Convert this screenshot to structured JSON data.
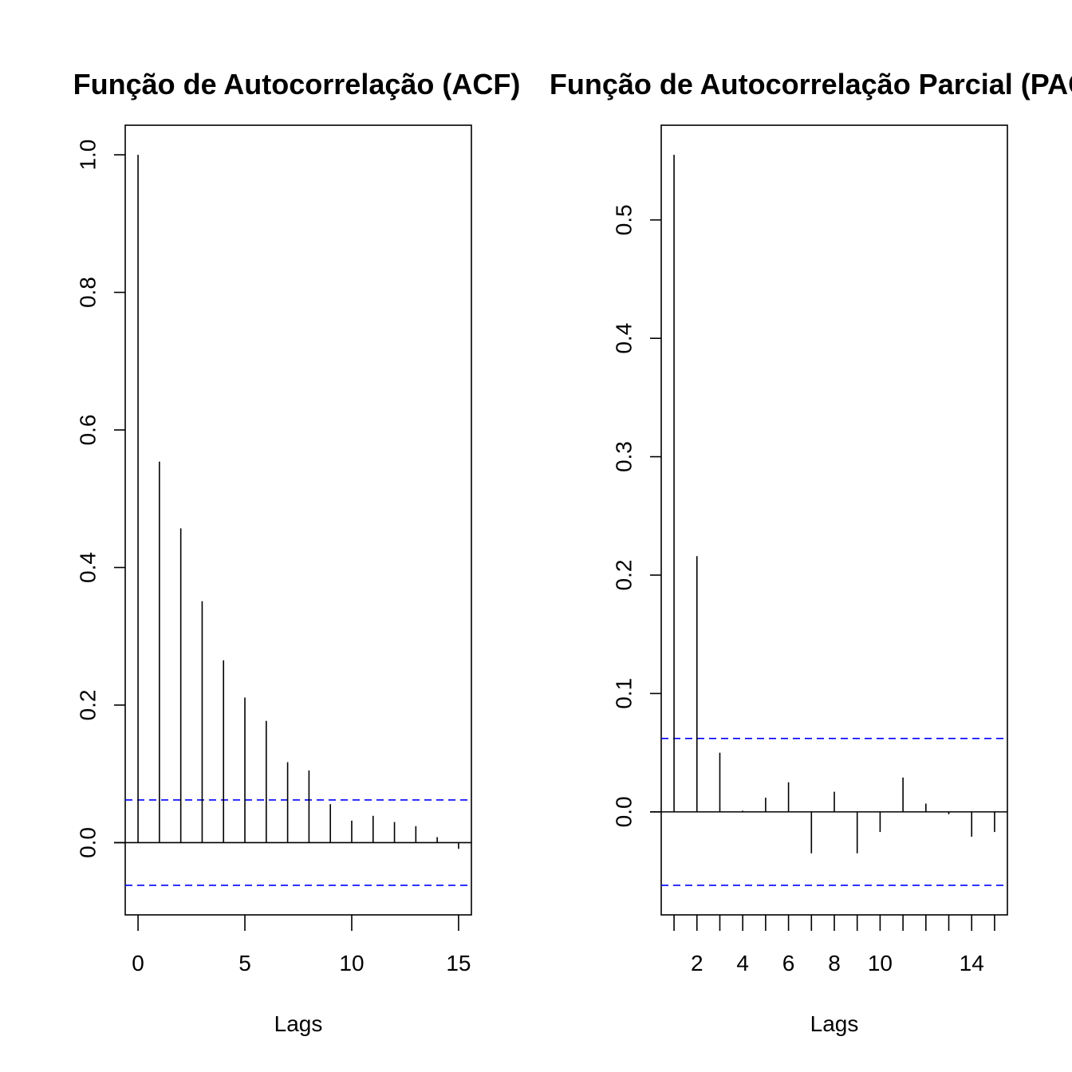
{
  "chart_data": [
    {
      "type": "bar",
      "title": "Função de Autocorrelação (ACF)",
      "xlabel": "Lags",
      "ylabel": "",
      "xlim": [
        -0.6,
        15.6
      ],
      "ylim": [
        -0.105,
        1.043
      ],
      "xticks": [
        0,
        5,
        10,
        15
      ],
      "yticks": [
        0.0,
        0.2,
        0.4,
        0.6,
        0.8,
        1.0
      ],
      "ytick_labels": [
        "0.0",
        "0.2",
        "0.4",
        "0.6",
        "0.8",
        "1.0"
      ],
      "confidence_bound": 0.062,
      "ci_color": "#0000ff",
      "x": [
        0,
        1,
        2,
        3,
        4,
        5,
        6,
        7,
        8,
        9,
        10,
        11,
        12,
        13,
        14,
        15
      ],
      "values": [
        1.0,
        0.554,
        0.457,
        0.351,
        0.265,
        0.211,
        0.177,
        0.117,
        0.105,
        0.056,
        0.032,
        0.039,
        0.03,
        0.024,
        0.008,
        -0.009
      ],
      "grid": false
    },
    {
      "type": "bar",
      "title": "Função de Autocorrelação Parcial (PACF)",
      "xlabel": "Lags",
      "ylabel": "",
      "xlim": [
        0.44,
        15.56
      ],
      "ylim": [
        -0.087,
        0.58
      ],
      "xticks": [
        1,
        2,
        3,
        4,
        5,
        6,
        7,
        8,
        9,
        10,
        11,
        12,
        13,
        14,
        15
      ],
      "xtick_labels": [
        "",
        "2",
        "",
        "4",
        "",
        "6",
        "",
        "8",
        "",
        "10",
        "",
        "",
        "",
        "14",
        ""
      ],
      "yticks": [
        0.0,
        0.1,
        0.2,
        0.3,
        0.4,
        0.5
      ],
      "ytick_labels": [
        "0.0",
        "0.1",
        "0.2",
        "0.3",
        "0.4",
        "0.5"
      ],
      "confidence_bound": 0.062,
      "ci_color": "#0000ff",
      "x": [
        1,
        2,
        3,
        4,
        5,
        6,
        7,
        8,
        9,
        10,
        11,
        12,
        13,
        14,
        15
      ],
      "values": [
        0.555,
        0.216,
        0.05,
        0.001,
        0.012,
        0.025,
        -0.035,
        0.017,
        -0.035,
        -0.017,
        0.029,
        0.007,
        -0.002,
        -0.021,
        -0.017
      ],
      "grid": false
    }
  ]
}
